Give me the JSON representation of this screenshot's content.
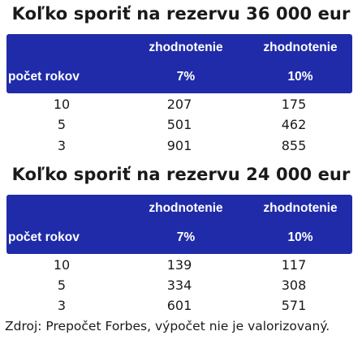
{
  "tables": [
    {
      "title": "Koľko sporiť na rezervu 36 000 eur",
      "header": {
        "col0": "počet rokov",
        "col1_line1": "zhodnotenie",
        "col1_line2": "7%",
        "col2_line1": "zhodnotenie",
        "col2_line2": "10%"
      },
      "rows": [
        {
          "years": "10",
          "v7": "207",
          "v10": "175"
        },
        {
          "years": "5",
          "v7": "501",
          "v10": "462"
        },
        {
          "years": "3",
          "v7": "901",
          "v10": "855"
        }
      ]
    },
    {
      "title": "Koľko sporiť na rezervu 24 000 eur",
      "header": {
        "col0": "počet rokov",
        "col1_line1": "zhodnotenie",
        "col1_line2": "7%",
        "col2_line1": "zhodnotenie",
        "col2_line2": "10%"
      },
      "rows": [
        {
          "years": "10",
          "v7": "139",
          "v10": "117"
        },
        {
          "years": "5",
          "v7": "334",
          "v10": "308"
        },
        {
          "years": "3",
          "v7": "601",
          "v10": "571"
        }
      ]
    }
  ],
  "source": "Zdroj: Prepočet Forbes, výpočet nie je valorizovaný.",
  "colors": {
    "header_bg": "#1f2ba8",
    "header_text": "#ffffff",
    "body_text": "#1a1a1a"
  }
}
